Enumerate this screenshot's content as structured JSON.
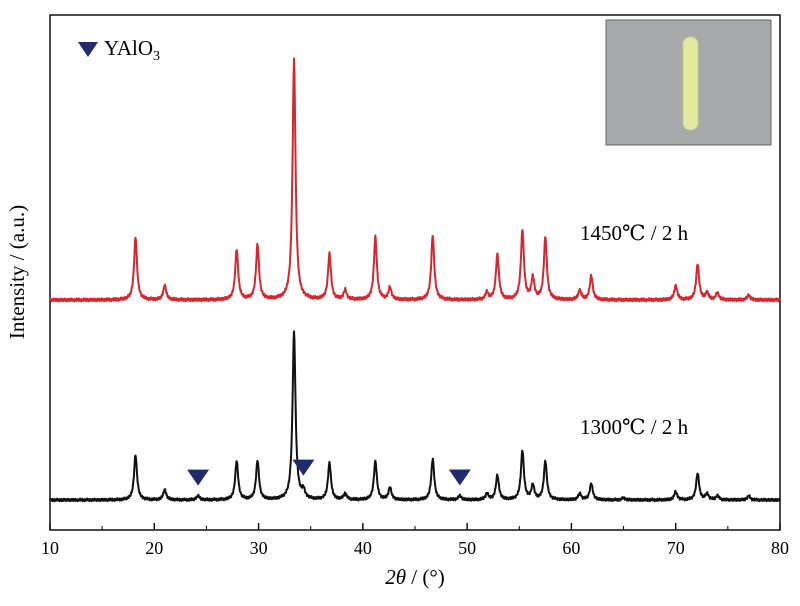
{
  "chart_data": {
    "type": "line",
    "xlabel_symbol": "2θ",
    "xlabel_unit": " / (°)",
    "ylabel": "Intensity / (a.u.)",
    "xlim": [
      10,
      80
    ],
    "x_ticks": [
      10,
      20,
      30,
      40,
      50,
      60,
      70,
      80
    ],
    "grid": false,
    "legend": {
      "marker": "down-triangle",
      "label_main": "YAlO",
      "label_sub": "3",
      "color": "#1f2b6b",
      "placement": "top-left"
    },
    "series": [
      {
        "name": "1450℃ / 2 h",
        "color": "#d7262e",
        "baseline_offset": 1.0,
        "peaks": [
          {
            "x": 18.2,
            "h": 0.26
          },
          {
            "x": 21.0,
            "h": 0.06
          },
          {
            "x": 27.9,
            "h": 0.21
          },
          {
            "x": 29.9,
            "h": 0.23
          },
          {
            "x": 33.4,
            "h": 1.0
          },
          {
            "x": 36.8,
            "h": 0.19
          },
          {
            "x": 38.3,
            "h": 0.04
          },
          {
            "x": 41.2,
            "h": 0.26
          },
          {
            "x": 42.6,
            "h": 0.05
          },
          {
            "x": 46.7,
            "h": 0.27
          },
          {
            "x": 51.9,
            "h": 0.03
          },
          {
            "x": 52.9,
            "h": 0.19
          },
          {
            "x": 55.3,
            "h": 0.29
          },
          {
            "x": 56.3,
            "h": 0.09
          },
          {
            "x": 57.5,
            "h": 0.26
          },
          {
            "x": 60.8,
            "h": 0.04
          },
          {
            "x": 61.9,
            "h": 0.1
          },
          {
            "x": 70.0,
            "h": 0.06
          },
          {
            "x": 72.1,
            "h": 0.15
          },
          {
            "x": 73.0,
            "h": 0.03
          },
          {
            "x": 74.0,
            "h": 0.03
          },
          {
            "x": 77.0,
            "h": 0.02
          }
        ]
      },
      {
        "name": "1300℃ / 2 h",
        "color": "#111111",
        "baseline_offset": 0.0,
        "peaks": [
          {
            "x": 18.2,
            "h": 0.22
          },
          {
            "x": 21.0,
            "h": 0.05
          },
          {
            "x": 24.2,
            "h": 0.02
          },
          {
            "x": 27.9,
            "h": 0.19
          },
          {
            "x": 29.9,
            "h": 0.19
          },
          {
            "x": 33.4,
            "h": 0.82
          },
          {
            "x": 34.3,
            "h": 0.04
          },
          {
            "x": 36.8,
            "h": 0.18
          },
          {
            "x": 38.3,
            "h": 0.03
          },
          {
            "x": 41.2,
            "h": 0.19
          },
          {
            "x": 42.6,
            "h": 0.06
          },
          {
            "x": 46.7,
            "h": 0.2
          },
          {
            "x": 49.3,
            "h": 0.02
          },
          {
            "x": 51.9,
            "h": 0.03
          },
          {
            "x": 52.9,
            "h": 0.12
          },
          {
            "x": 55.3,
            "h": 0.24
          },
          {
            "x": 56.3,
            "h": 0.07
          },
          {
            "x": 57.5,
            "h": 0.19
          },
          {
            "x": 60.8,
            "h": 0.03
          },
          {
            "x": 61.9,
            "h": 0.08
          },
          {
            "x": 65.0,
            "h": 0.01
          },
          {
            "x": 70.0,
            "h": 0.04
          },
          {
            "x": 72.1,
            "h": 0.13
          },
          {
            "x": 73.0,
            "h": 0.03
          },
          {
            "x": 74.0,
            "h": 0.02
          },
          {
            "x": 77.0,
            "h": 0.02
          }
        ]
      }
    ],
    "markers": [
      {
        "x": 24.2,
        "series": "1300℃ / 2 h",
        "label": "YAlO3"
      },
      {
        "x": 34.3,
        "series": "1300℃ / 2 h",
        "label": "YAlO3"
      },
      {
        "x": 49.3,
        "series": "1300℃ / 2 h",
        "label": "YAlO3"
      }
    ],
    "inset": {
      "content": "photograph of yellow-green rod sample",
      "background": "#a7a9ab",
      "rod_color": "#e4e9a2"
    }
  }
}
